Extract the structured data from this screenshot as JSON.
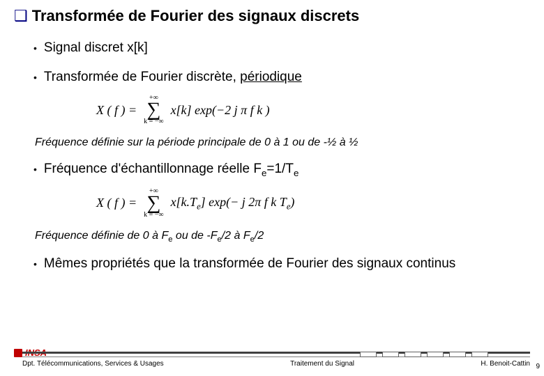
{
  "title": "Transformée de Fourier des signaux discrets",
  "bullets": {
    "b1": "Signal discret x[k]",
    "b2_pre": "Transformée de Fourier discrète, ",
    "b2_under": "périodique",
    "b3_pre": "Fréquence d'échantillonnage réelle F",
    "b3_mid": "=1/T",
    "b4": "Mêmes propriétés que la transformée de Fourier des signaux continus"
  },
  "eq1": {
    "lhs": "X ( f ) =",
    "sum_top": "+∞",
    "sum_bot": "k = −∞",
    "rhs": "x[k] exp(−2 j π f k )"
  },
  "eq2": {
    "lhs": "X ( f ) =",
    "sum_top": "+∞",
    "sum_bot": "k = −∞",
    "rhs_a": "x[k.T",
    "rhs_b": "] exp(− j 2π f k T",
    "rhs_c": ")"
  },
  "note1": "Fréquence définie sur la période principale de 0 à 1 ou de -½ à ½",
  "note2": {
    "a": "Fréquence définie de 0 à F",
    "b": " ou de -F",
    "c": "/2 à F",
    "d": "/2"
  },
  "footer": {
    "left": "Dpt. Télécommunications, Services & Usages",
    "center": "Traitement du Signal",
    "right": "H. Benoit-Cattin",
    "logo": "INSA",
    "page": "9"
  },
  "sub_e": "e"
}
